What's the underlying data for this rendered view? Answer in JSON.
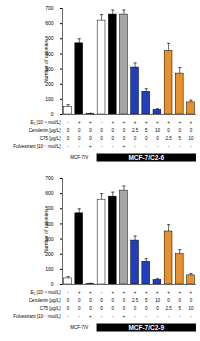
{
  "chart_data": [
    {
      "type": "bar",
      "categories": [
        null,
        null,
        null,
        null,
        null,
        null,
        null,
        null,
        null,
        null,
        null,
        null
      ],
      "values": [
        50,
        470,
        5,
        620,
        660,
        660,
        310,
        150,
        30,
        420,
        270,
        80
      ],
      "errors": [
        15,
        30,
        3,
        40,
        30,
        30,
        30,
        20,
        8,
        50,
        40,
        15
      ],
      "colors": [
        "#ffffff",
        "#000000",
        "#ffffff",
        "#ffffff",
        "#000000",
        "#a6a6a6",
        "#1f3fbf",
        "#1f3fbf",
        "#1f3fbf",
        "#e8902a",
        "#e8902a",
        "#e8902a"
      ],
      "ylabel": "Number of colonies",
      "ylim": [
        0,
        700
      ],
      "yticks": [
        0,
        100,
        200,
        300,
        400,
        500,
        600,
        700
      ],
      "conditions": [
        {
          "label": "E₂ [10⁻⁹ mol/L]",
          "values": [
            "-",
            "+",
            "+",
            "-",
            "+",
            "+",
            "+",
            "+",
            "+",
            "+",
            "+",
            "+"
          ]
        },
        {
          "label": "Cerulenin [μg/L]",
          "values": [
            "0",
            "0",
            "0",
            "0",
            "0",
            "0",
            "2.5",
            "5",
            "10",
            "0",
            "0",
            "0"
          ]
        },
        {
          "label": "C75 [μg/L]",
          "values": [
            "0",
            "0",
            "0",
            "0",
            "0",
            "0",
            "0",
            "0",
            "0",
            "2.5",
            "5",
            "10"
          ]
        },
        {
          "label": "Fulvestrant [10⁻⁷ mol/L]",
          "values": [
            "-",
            "-",
            "+",
            "-",
            "-",
            "+",
            "-",
            "-",
            "-",
            "-",
            "-",
            "-"
          ]
        }
      ],
      "groups": [
        {
          "label": "MCF-7/V",
          "count": 3
        },
        {
          "label": "MCF-7/C2-6",
          "count": 9
        }
      ]
    },
    {
      "type": "bar",
      "categories": [
        null,
        null,
        null,
        null,
        null,
        null,
        null,
        null,
        null,
        null,
        null,
        null
      ],
      "values": [
        40,
        470,
        5,
        560,
        580,
        620,
        290,
        150,
        30,
        350,
        200,
        60
      ],
      "errors": [
        12,
        30,
        3,
        40,
        30,
        30,
        30,
        20,
        8,
        45,
        30,
        12
      ],
      "colors": [
        "#ffffff",
        "#000000",
        "#ffffff",
        "#ffffff",
        "#000000",
        "#a6a6a6",
        "#1f3fbf",
        "#1f3fbf",
        "#1f3fbf",
        "#e8902a",
        "#e8902a",
        "#e8902a"
      ],
      "ylabel": "Number of colonies",
      "ylim": [
        0,
        700
      ],
      "yticks": [
        0,
        100,
        200,
        300,
        400,
        500,
        600,
        700
      ],
      "conditions": [
        {
          "label": "E₂ [10⁻⁹ mol/L]",
          "values": [
            "-",
            "+",
            "+",
            "-",
            "+",
            "+",
            "+",
            "+",
            "+",
            "+",
            "+",
            "+"
          ]
        },
        {
          "label": "Cerulenin [μg/L]",
          "values": [
            "0",
            "0",
            "0",
            "0",
            "0",
            "0",
            "2.5",
            "5",
            "10",
            "0",
            "0",
            "0"
          ]
        },
        {
          "label": "C75 [μg/L]",
          "values": [
            "0",
            "0",
            "0",
            "0",
            "0",
            "0",
            "0",
            "0",
            "0",
            "2.5",
            "5",
            "10"
          ]
        },
        {
          "label": "Fulvestrant [10⁻⁷ mol/L]",
          "values": [
            "-",
            "-",
            "+",
            "-",
            "-",
            "+",
            "-",
            "-",
            "-",
            "-",
            "-",
            "-"
          ]
        }
      ],
      "groups": [
        {
          "label": "MCF-7/V",
          "count": 3
        },
        {
          "label": "MCF-7/C2-9",
          "count": 9
        }
      ]
    }
  ]
}
